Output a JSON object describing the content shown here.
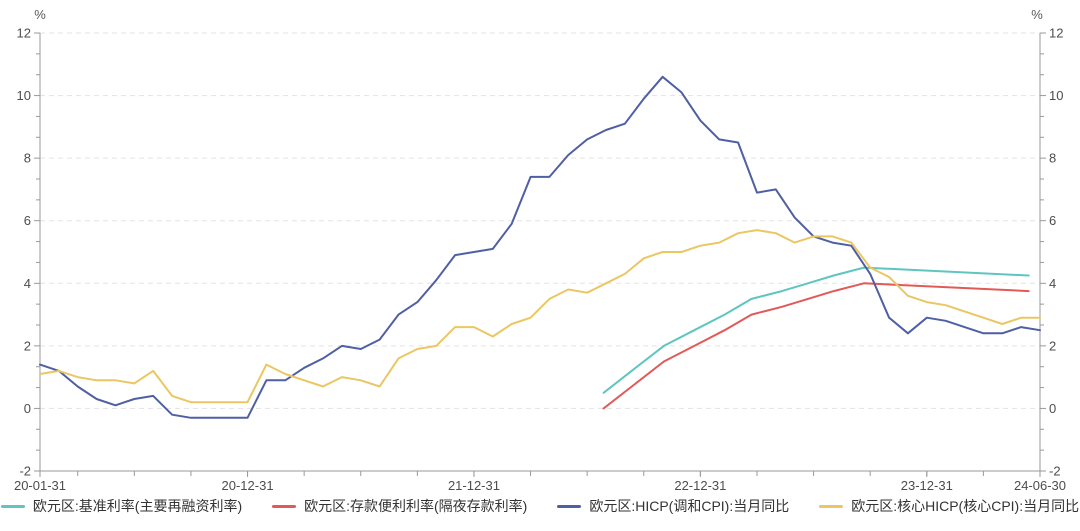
{
  "chart_data": {
    "type": "line",
    "title": "",
    "legend_position": "bottom",
    "grid": "horizontal-dashed",
    "colors": {
      "axis": "#999999",
      "grid": "#e3e3e3",
      "tick_label": "#4d4d4d",
      "legend_text": "#333333"
    },
    "y_axis": {
      "unit": "%",
      "min": -2,
      "max": 12,
      "tick_step": 2,
      "tick_labels": [
        "-2",
        "0",
        "2",
        "4",
        "6",
        "8",
        "10",
        "12"
      ],
      "minor_ticks_per_interval": 2,
      "dual": true
    },
    "x_axis": {
      "range_start": "2020-01-31",
      "range_end": "2024-06-30",
      "minor_tick_every_months": 3,
      "labeled_ticks": [
        {
          "label": "20-01-31",
          "date": "2020-01-31"
        },
        {
          "label": "20-12-31",
          "date": "2020-12-31"
        },
        {
          "label": "21-12-31",
          "date": "2021-12-31"
        },
        {
          "label": "22-12-31",
          "date": "2022-12-31"
        },
        {
          "label": "23-12-31",
          "date": "2023-12-31"
        },
        {
          "label": "24-06-30",
          "date": "2024-06-30"
        }
      ]
    },
    "series": [
      {
        "name": "欧元区:基准利率(主要再融资利率)",
        "color": "#5ec5bf",
        "points": [
          [
            "2022-07-27",
            0.5
          ],
          [
            "2022-09-14",
            1.25
          ],
          [
            "2022-11-02",
            2.0
          ],
          [
            "2022-12-21",
            2.5
          ],
          [
            "2023-02-08",
            3.0
          ],
          [
            "2023-03-22",
            3.5
          ],
          [
            "2023-05-10",
            3.75
          ],
          [
            "2023-06-21",
            4.0
          ],
          [
            "2023-08-02",
            4.25
          ],
          [
            "2023-09-20",
            4.5
          ],
          [
            "2024-06-12",
            4.25
          ]
        ]
      },
      {
        "name": "欧元区:存款便利利率(隔夜存款利率)",
        "color": "#e15a57",
        "points": [
          [
            "2022-07-27",
            0.0
          ],
          [
            "2022-09-14",
            0.75
          ],
          [
            "2022-11-02",
            1.5
          ],
          [
            "2022-12-21",
            2.0
          ],
          [
            "2023-02-08",
            2.5
          ],
          [
            "2023-03-22",
            3.0
          ],
          [
            "2023-05-10",
            3.25
          ],
          [
            "2023-06-21",
            3.5
          ],
          [
            "2023-08-02",
            3.75
          ],
          [
            "2023-09-20",
            4.0
          ],
          [
            "2024-06-12",
            3.75
          ]
        ]
      },
      {
        "name": "欧元区:HICP(调和CPI):当月同比",
        "color": "#4f5fa3",
        "start_month": "2020-01",
        "monthly_values": [
          1.4,
          1.2,
          0.7,
          0.3,
          0.1,
          0.3,
          0.4,
          -0.2,
          -0.3,
          -0.3,
          -0.3,
          -0.3,
          0.9,
          0.9,
          1.3,
          1.6,
          2.0,
          1.9,
          2.2,
          3.0,
          3.4,
          4.1,
          4.9,
          5.0,
          5.1,
          5.9,
          7.4,
          7.4,
          8.1,
          8.6,
          8.9,
          9.1,
          9.9,
          10.6,
          10.1,
          9.2,
          8.6,
          8.5,
          6.9,
          7.0,
          6.1,
          5.5,
          5.3,
          5.2,
          4.3,
          2.9,
          2.4,
          2.9,
          2.8,
          2.6,
          2.4,
          2.4,
          2.6,
          2.5
        ]
      },
      {
        "name": "欧元区:核心HICP(核心CPI):当月同比",
        "color": "#eac762",
        "start_month": "2020-01",
        "monthly_values": [
          1.1,
          1.2,
          1.0,
          0.9,
          0.9,
          0.8,
          1.2,
          0.4,
          0.2,
          0.2,
          0.2,
          0.2,
          1.4,
          1.1,
          0.9,
          0.7,
          1.0,
          0.9,
          0.7,
          1.6,
          1.9,
          2.0,
          2.6,
          2.6,
          2.3,
          2.7,
          2.9,
          3.5,
          3.8,
          3.7,
          4.0,
          4.3,
          4.8,
          5.0,
          5.0,
          5.2,
          5.3,
          5.6,
          5.7,
          5.6,
          5.3,
          5.5,
          5.5,
          5.3,
          4.5,
          4.2,
          3.6,
          3.4,
          3.3,
          3.1,
          2.9,
          2.7,
          2.9,
          2.9
        ]
      }
    ]
  }
}
